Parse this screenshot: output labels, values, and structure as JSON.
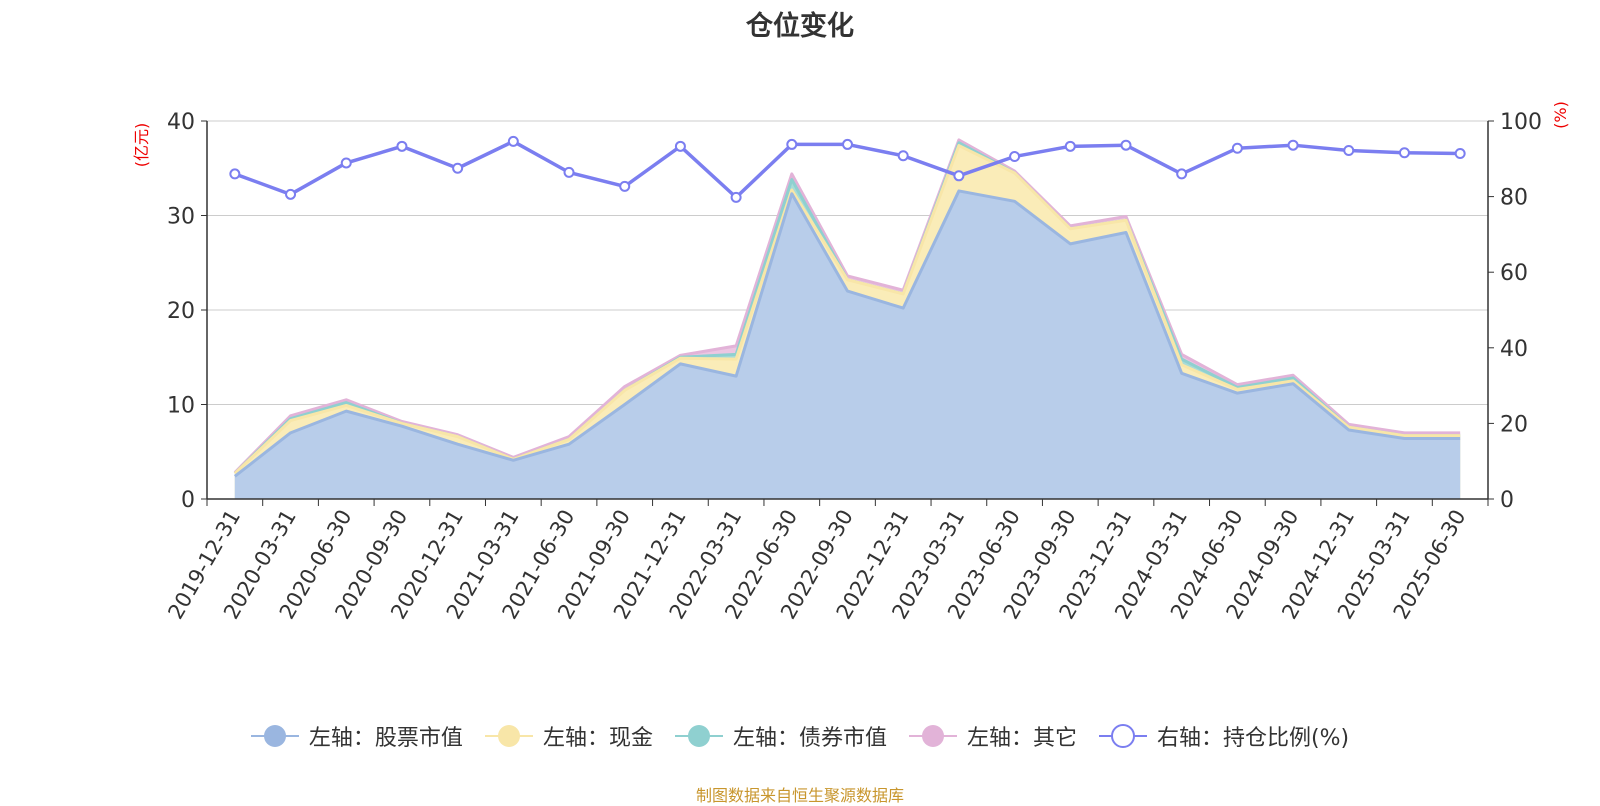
{
  "chart_data": {
    "type": "area",
    "title": "仓位变化",
    "left_axis": {
      "unit_label": "(亿元)",
      "ylim": [
        0,
        40
      ],
      "ticks": [
        "0",
        "10",
        "20",
        "30",
        "40"
      ]
    },
    "right_axis": {
      "unit_label": "(%)",
      "ylim": [
        0,
        100
      ],
      "ticks": [
        "0",
        "20",
        "40",
        "60",
        "80",
        "100"
      ]
    },
    "categories": [
      "2019-12-31",
      "2020-03-31",
      "2020-06-30",
      "2020-09-30",
      "2020-12-31",
      "2021-03-31",
      "2021-06-30",
      "2021-09-30",
      "2021-12-31",
      "2022-03-31",
      "2022-06-30",
      "2022-09-30",
      "2022-12-31",
      "2023-03-31",
      "2023-06-30",
      "2023-09-30",
      "2023-12-31",
      "2024-03-31",
      "2024-06-30",
      "2024-09-30",
      "2024-12-31",
      "2025-03-31",
      "2025-06-30"
    ],
    "stacked_series": [
      {
        "name": "左轴：股票市值",
        "axis": "left",
        "color": "#9ab6e0",
        "fill": "#b8cdea",
        "values": [
          2.4,
          7.0,
          9.3,
          7.7,
          5.8,
          4.1,
          5.8,
          10.0,
          14.3,
          13.0,
          32.3,
          22.0,
          20.2,
          32.6,
          31.5,
          27.0,
          28.2,
          13.3,
          11.2,
          12.2,
          7.3,
          6.4,
          6.4
        ]
      },
      {
        "name": "左轴：现金",
        "axis": "left",
        "color": "#f8e6a8",
        "fill": "#faecb8",
        "values": [
          0.3,
          1.3,
          0.6,
          0.3,
          0.8,
          0.1,
          0.5,
          1.5,
          0.6,
          1.8,
          0.4,
          1.2,
          1.5,
          4.8,
          3.0,
          1.6,
          1.3,
          0.9,
          0.4,
          0.3,
          0.3,
          0.3,
          0.3
        ]
      },
      {
        "name": "左轴：债券市值",
        "axis": "left",
        "color": "#8fd0d0",
        "fill": "#a8dcd8",
        "values": [
          0.0,
          0.2,
          0.3,
          0.0,
          0.0,
          0.0,
          0.0,
          0.0,
          0.1,
          0.5,
          1.1,
          0.0,
          0.0,
          0.3,
          0.0,
          0.0,
          0.0,
          0.6,
          0.2,
          0.3,
          0.0,
          0.0,
          0.0
        ]
      },
      {
        "name": "左轴：其它",
        "axis": "left",
        "color": "#e2b3d8",
        "fill": "#ecc6e2",
        "values": [
          0.1,
          0.3,
          0.3,
          0.2,
          0.2,
          0.2,
          0.3,
          0.4,
          0.2,
          0.9,
          0.6,
          0.4,
          0.4,
          0.3,
          0.2,
          0.3,
          0.4,
          0.5,
          0.3,
          0.3,
          0.3,
          0.3,
          0.3
        ]
      }
    ],
    "line_series": [
      {
        "name": "右轴：持仓比例(%)",
        "axis": "right",
        "color": "#7b7ef0",
        "values": [
          86.0,
          80.6,
          88.9,
          93.3,
          87.5,
          94.6,
          86.4,
          82.7,
          93.3,
          79.8,
          93.8,
          93.8,
          90.8,
          85.5,
          90.6,
          93.3,
          93.6,
          86.0,
          92.8,
          93.6,
          92.2,
          91.6,
          91.4
        ]
      }
    ],
    "grid": true,
    "legend_position": "bottom"
  },
  "source_note": "制图数据来自恒生聚源数据库"
}
